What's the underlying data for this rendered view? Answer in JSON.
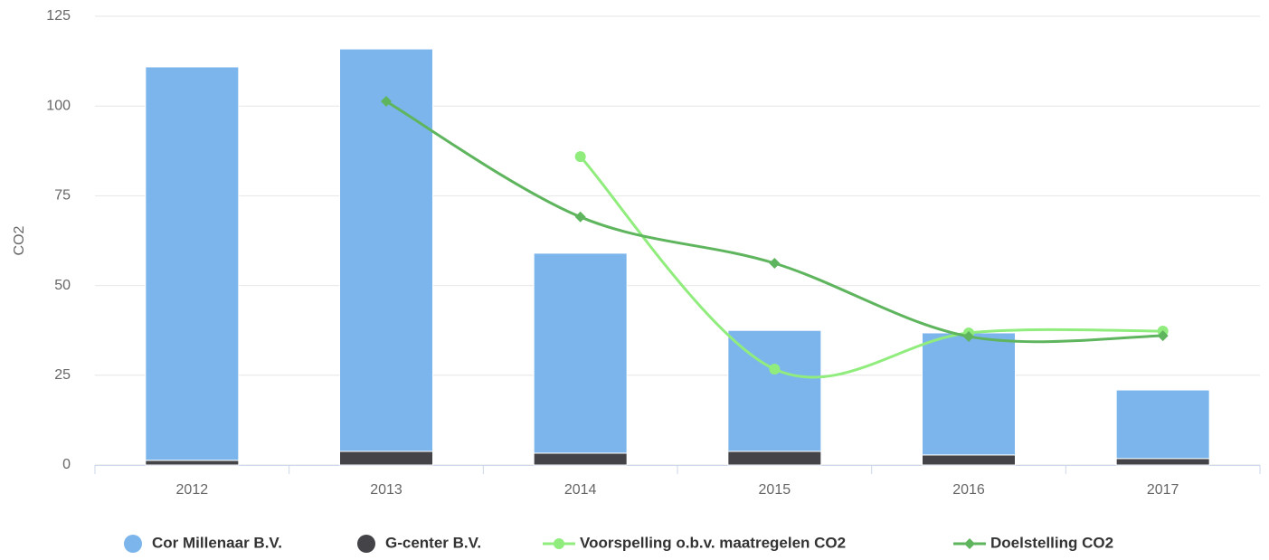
{
  "chart_data": {
    "type": "bar",
    "y_label": "CO2",
    "categories": [
      "2012",
      "2013",
      "2014",
      "2015",
      "2016",
      "2017"
    ],
    "ylim": [
      0,
      125
    ],
    "yticks": [
      0,
      25,
      50,
      75,
      100,
      125
    ],
    "grid": true,
    "stacked": true,
    "legend": "bottom",
    "series": [
      {
        "name": "Cor Millenaar B.V.",
        "type": "bar",
        "color": "#7cb5ec",
        "values": [
          109.6,
          112.1,
          55.7,
          33.7,
          34.0,
          19.1
        ]
      },
      {
        "name": "G-center B.V.",
        "type": "bar",
        "color": "#434348",
        "values": [
          1.3,
          3.8,
          3.3,
          3.8,
          2.8,
          1.8
        ]
      },
      {
        "name": "Voorspelling o.b.v. maatregelen CO2",
        "type": "line",
        "marker": "circle",
        "color": "#90ed7d",
        "values": [
          null,
          null,
          85.9,
          26.7,
          36.8,
          37.3
        ]
      },
      {
        "name": "Doelstelling CO2",
        "type": "line",
        "marker": "diamond",
        "color": "#5eb55e",
        "values": [
          null,
          101.3,
          69.1,
          56.2,
          35.8,
          36.0
        ]
      }
    ]
  }
}
